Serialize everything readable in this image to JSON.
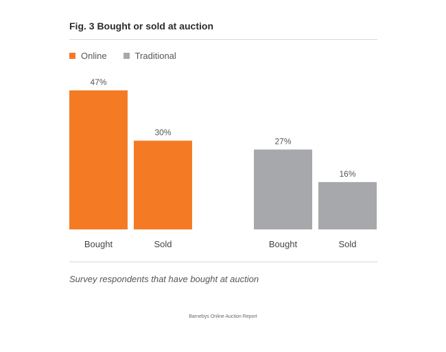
{
  "title": "Fig. 3 Bought or sold at auction",
  "caption": "Survey respondents that have bought at auction",
  "footer": "Barnebys Online Auction Report",
  "colors": {
    "online": "#f47b24",
    "traditional": "#a7a8ab"
  },
  "chart_data": {
    "type": "bar",
    "categories": [
      "Bought",
      "Sold"
    ],
    "series": [
      {
        "name": "Online",
        "values": [
          47,
          30
        ]
      },
      {
        "name": "Traditional",
        "values": [
          27,
          16
        ]
      }
    ],
    "value_suffix": "%",
    "ylim": [
      0,
      50
    ],
    "grid": false,
    "legend": "top-left"
  }
}
